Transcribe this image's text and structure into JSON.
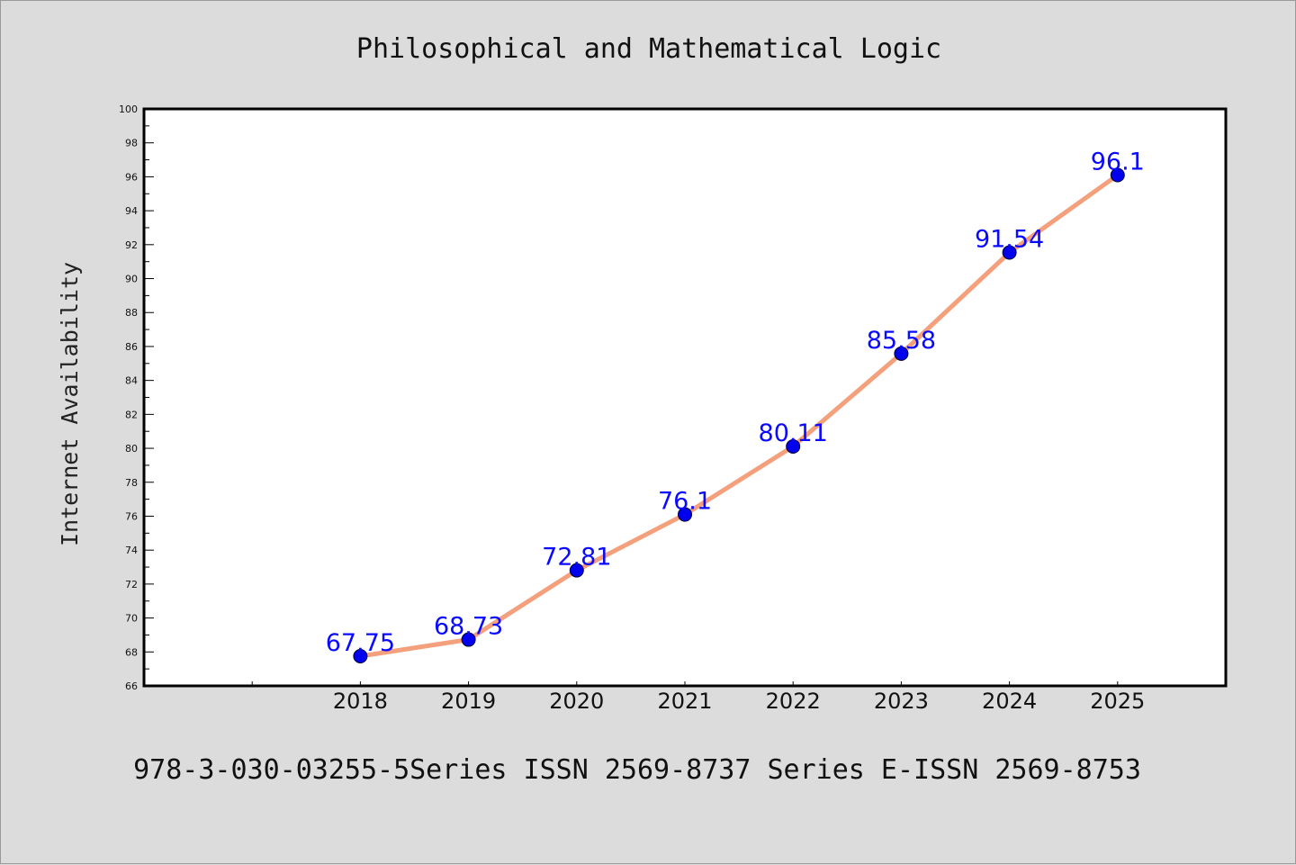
{
  "chart_data": {
    "type": "line",
    "title": "Philosophical and Mathematical Logic",
    "xlabel": "",
    "ylabel": "Internet Availability",
    "categories": [
      "2018",
      "2019",
      "2020",
      "2021",
      "2022",
      "2023",
      "2024",
      "2025"
    ],
    "series": [
      {
        "values": [
          67.75,
          68.73,
          72.81,
          76.1,
          80.11,
          85.58,
          91.54,
          96.1
        ],
        "data_labels": [
          "67.75",
          "68.73",
          "72.81",
          "76.1",
          "80.11",
          "85.58",
          "91.54",
          "96.1"
        ],
        "line_color": "#f4a07c",
        "marker_color": "#0000ee",
        "label_color": "#0a0aff"
      }
    ],
    "ylim": [
      66,
      100
    ],
    "yticks": [
      "66",
      "68",
      "70",
      "72",
      "74",
      "76",
      "78",
      "80",
      "82",
      "84",
      "86",
      "88",
      "90",
      "92",
      "94",
      "96",
      "98",
      "100"
    ],
    "grid": false,
    "legend": "none",
    "background_color": "#dcdcdc",
    "plot_background_color": "#ffffff"
  },
  "footer": {
    "text": "978-3-030-03255-5Series ISSN 2569-8737 Series E-ISSN 2569-8753"
  }
}
